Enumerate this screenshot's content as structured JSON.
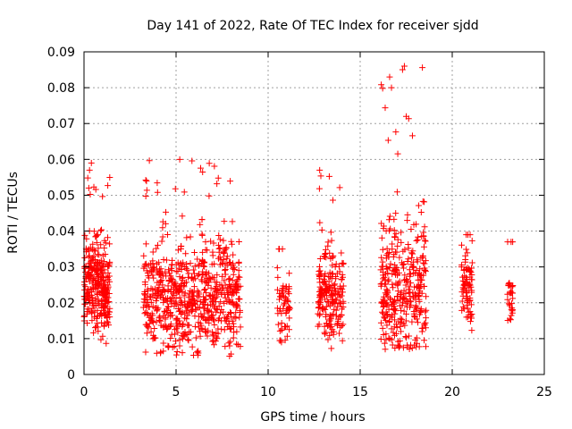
{
  "chart_data": {
    "type": "scatter",
    "title": "Day 141 of 2022, Rate Of TEC Index for receiver sjdd",
    "xlabel": "GPS time / hours",
    "ylabel": "ROTI / TECUs",
    "xlim": [
      0,
      25
    ],
    "ylim": [
      0,
      0.09
    ],
    "xticks": [
      0,
      5,
      10,
      15,
      20,
      25
    ],
    "yticks": [
      0,
      0.01,
      0.02,
      0.03,
      0.04,
      0.05,
      0.06,
      0.07,
      0.08,
      0.09
    ],
    "grid": true,
    "marker": "+",
    "color": "#ff0000",
    "series": [
      {
        "name": "ROTI",
        "clusters": [
          {
            "x_range": [
              0.0,
              1.4
            ],
            "y_range": [
              0.008,
              0.044
            ],
            "peak": 0.059,
            "center": 0.024,
            "count": 300
          },
          {
            "x_range": [
              3.2,
              8.5
            ],
            "y_range": [
              0.005,
              0.048
            ],
            "peak": 0.06,
            "center": 0.022,
            "count": 700
          },
          {
            "x_range": [
              10.5,
              11.2
            ],
            "y_range": [
              0.008,
              0.035
            ],
            "peak": 0.035,
            "center": 0.02,
            "count": 60
          },
          {
            "x_range": [
              12.7,
              14.1
            ],
            "y_range": [
              0.006,
              0.045
            ],
            "peak": 0.057,
            "center": 0.022,
            "count": 200
          },
          {
            "x_range": [
              16.1,
              18.6
            ],
            "y_range": [
              0.007,
              0.06
            ],
            "peak": 0.086,
            "center": 0.024,
            "count": 350
          },
          {
            "x_range": [
              20.5,
              21.1
            ],
            "y_range": [
              0.011,
              0.039
            ],
            "peak": 0.039,
            "center": 0.024,
            "count": 80
          },
          {
            "x_range": [
              23.0,
              23.3
            ],
            "y_range": [
              0.013,
              0.037
            ],
            "peak": 0.037,
            "center": 0.022,
            "count": 30
          }
        ],
        "notable_points": [
          {
            "x": 0.4,
            "y": 0.059
          },
          {
            "x": 0.3,
            "y": 0.057
          },
          {
            "x": 5.2,
            "y": 0.06
          },
          {
            "x": 12.8,
            "y": 0.057
          },
          {
            "x": 16.6,
            "y": 0.083
          },
          {
            "x": 16.7,
            "y": 0.08
          },
          {
            "x": 17.4,
            "y": 0.086
          },
          {
            "x": 17.3,
            "y": 0.085
          },
          {
            "x": 17.5,
            "y": 0.072
          }
        ]
      }
    ]
  }
}
